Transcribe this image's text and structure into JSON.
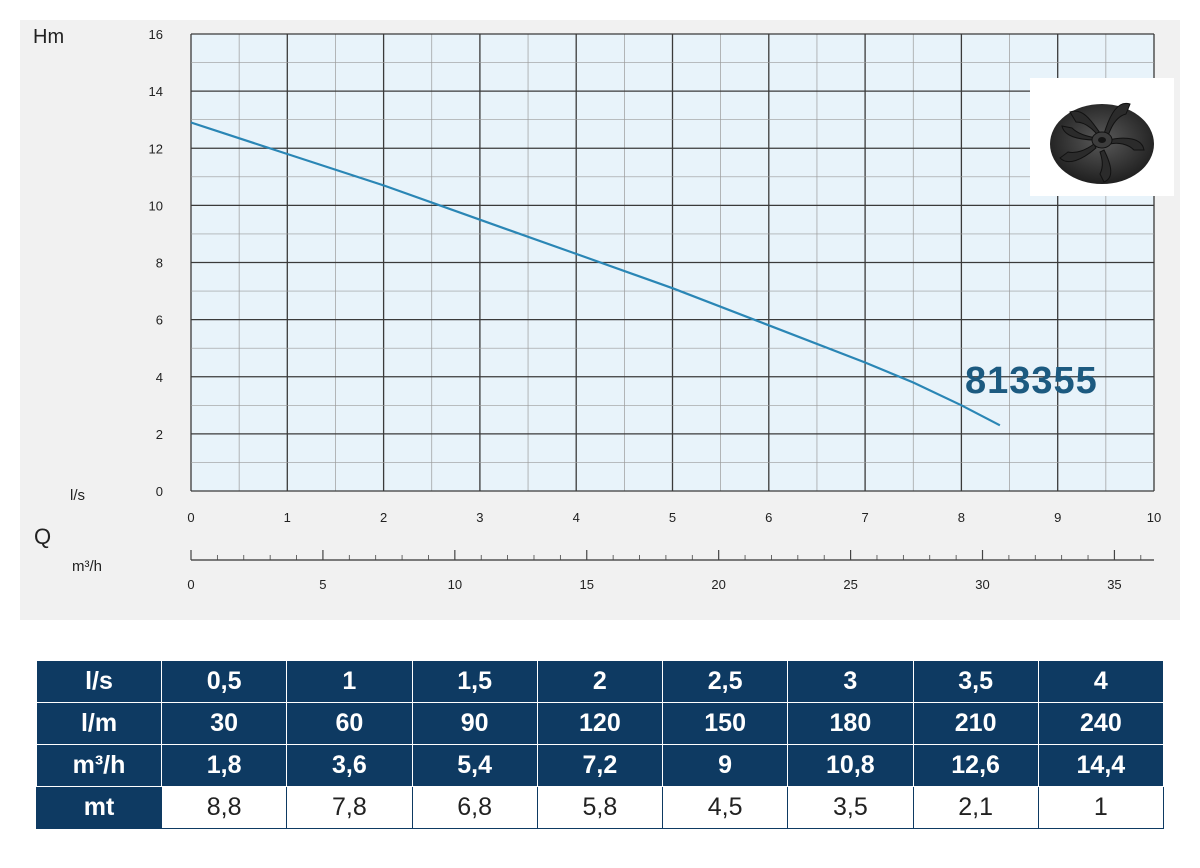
{
  "chart_data": {
    "type": "line",
    "title": "",
    "model": "813355",
    "ylabel": "Hm",
    "xlabel_q": "Q",
    "xlabel_ls": "l/s",
    "xlabel_m3h": "m³/h",
    "ylim": [
      0,
      16
    ],
    "yticks": [
      0,
      2,
      4,
      6,
      8,
      10,
      12,
      14,
      16
    ],
    "xlim_ls": [
      0,
      10
    ],
    "xticks_ls": [
      0,
      1,
      2,
      3,
      4,
      5,
      6,
      7,
      8,
      9,
      10
    ],
    "xlim_m3h": [
      0,
      36.5
    ],
    "xticks_m3h": [
      0,
      5,
      10,
      15,
      20,
      25,
      30,
      35
    ],
    "grid": true,
    "series": [
      {
        "name": "813355",
        "color": "#2a86b5",
        "x": [
          0,
          1,
          2,
          3,
          4,
          5,
          6,
          7,
          7.5,
          8,
          8.4
        ],
        "y": [
          12.9,
          11.8,
          10.7,
          9.5,
          8.3,
          7.1,
          5.8,
          4.5,
          3.8,
          3.0,
          2.3
        ]
      }
    ]
  },
  "colors": {
    "grid_bg": "#e8f3fa",
    "table_dark": "#0e3a62",
    "panel_bg": "#f1f1f1"
  },
  "icons": {
    "impeller": "impeller-image"
  },
  "table": {
    "headers": [
      "l/s",
      "l/m",
      "m³/h",
      "mt"
    ],
    "rows": [
      [
        "0,5",
        "1",
        "1,5",
        "2",
        "2,5",
        "3",
        "3,5",
        "4"
      ],
      [
        "30",
        "60",
        "90",
        "120",
        "150",
        "180",
        "210",
        "240"
      ],
      [
        "1,8",
        "3,6",
        "5,4",
        "7,2",
        "9",
        "10,8",
        "12,6",
        "14,4"
      ],
      [
        "8,8",
        "7,8",
        "6,8",
        "5,8",
        "4,5",
        "3,5",
        "2,1",
        "1"
      ]
    ]
  }
}
